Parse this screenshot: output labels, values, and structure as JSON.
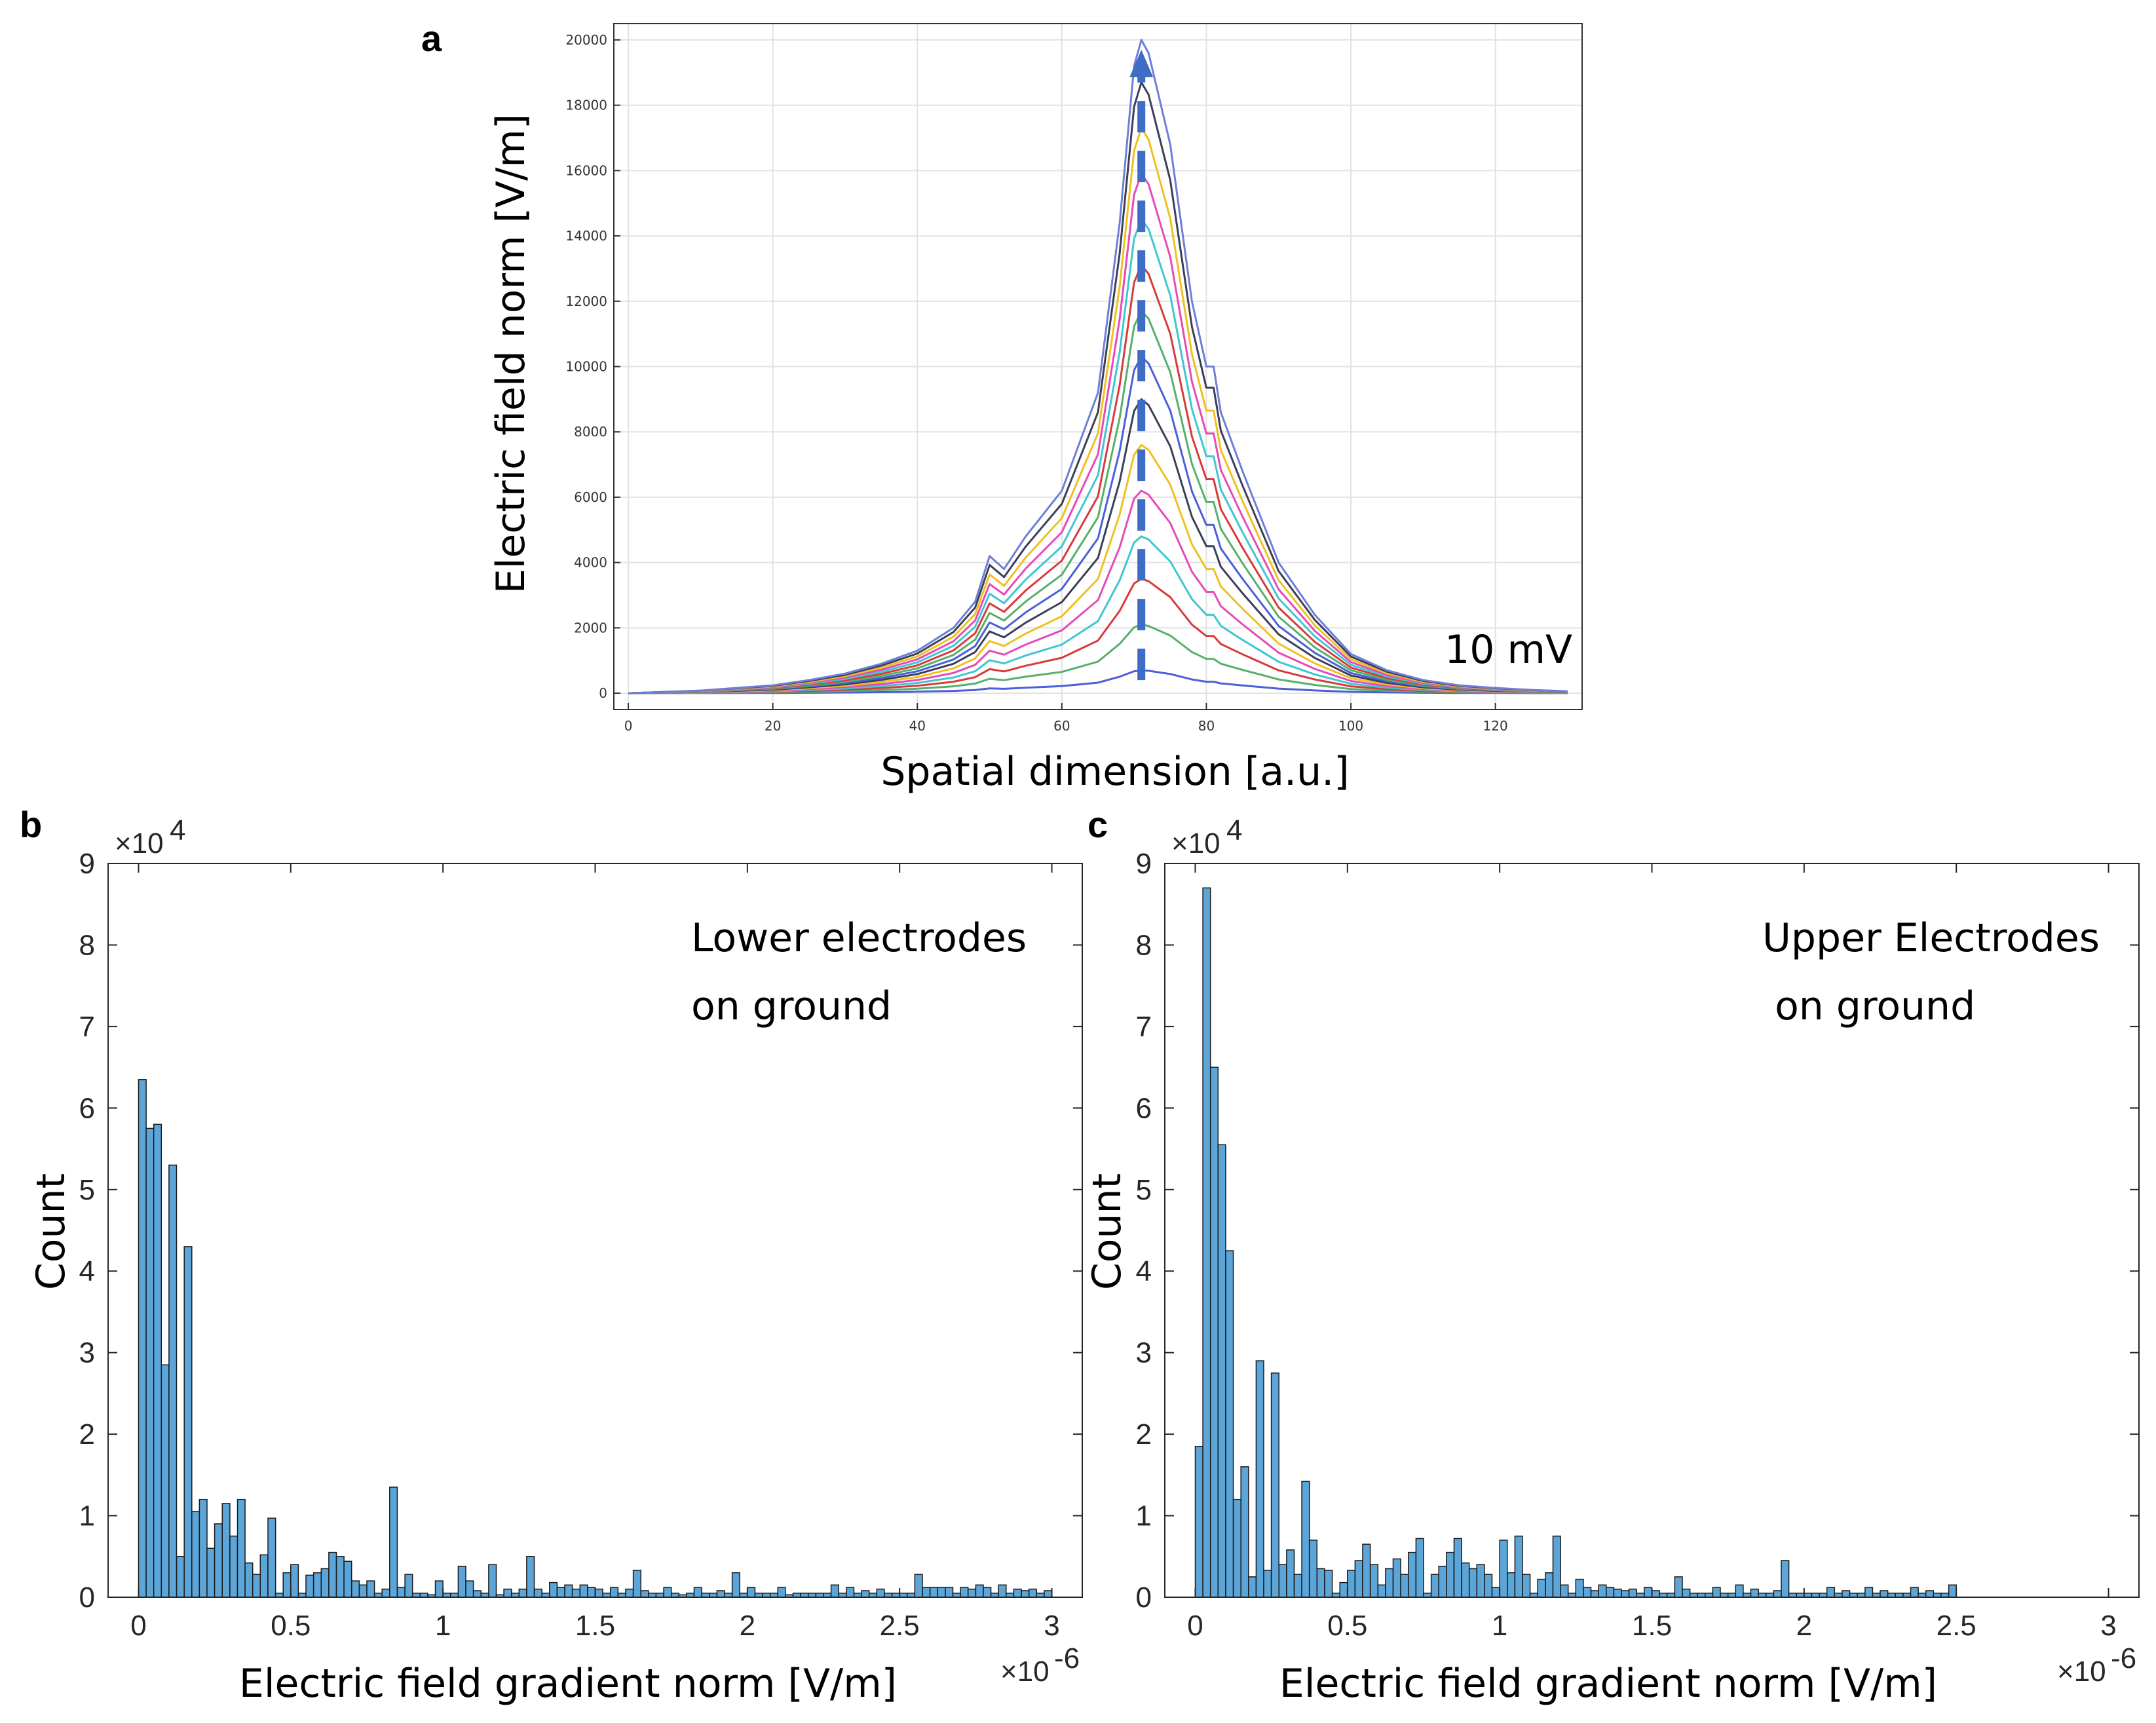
{
  "chart_data": [
    {
      "panel": "a",
      "type": "line",
      "xlabel": "Spatial dimension [a.u.]",
      "ylabel": "Electric field norm [V/m]",
      "xlim": [
        -2,
        132
      ],
      "ylim": [
        -500,
        20500
      ],
      "xticks": [
        "0",
        "20",
        "40",
        "60",
        "80",
        "100",
        "120"
      ],
      "yticks": [
        "0",
        "2000",
        "4000",
        "6000",
        "8000",
        "10000",
        "12000",
        "14000",
        "16000",
        "18000",
        "20000"
      ],
      "grid": true,
      "annotation": "10 mV",
      "profile_x": [
        0,
        10,
        20,
        25,
        30,
        35,
        40,
        45,
        48,
        50,
        52,
        55,
        60,
        65,
        68,
        70,
        71,
        72,
        75,
        78,
        80,
        81,
        82,
        85,
        90,
        95,
        100,
        105,
        110,
        115,
        120,
        125,
        130
      ],
      "profile_norm": [
        0.0,
        0.004,
        0.012,
        0.02,
        0.03,
        0.045,
        0.065,
        0.1,
        0.14,
        0.21,
        0.19,
        0.24,
        0.31,
        0.46,
        0.72,
        0.96,
        1.0,
        0.98,
        0.84,
        0.6,
        0.5,
        0.5,
        0.43,
        0.34,
        0.2,
        0.12,
        0.06,
        0.035,
        0.02,
        0.012,
        0.008,
        0.005,
        0.003
      ],
      "series": [
        {
          "color": "#4a5fd8",
          "peak": 700
        },
        {
          "color": "#55b06a",
          "peak": 2100
        },
        {
          "color": "#d83a3a",
          "peak": 3500
        },
        {
          "color": "#3fc6d3",
          "peak": 4800
        },
        {
          "color": "#e64ab8",
          "peak": 6200
        },
        {
          "color": "#f0c020",
          "peak": 7600
        },
        {
          "color": "#3b3f58",
          "peak": 9000
        },
        {
          "color": "#4a5fd8",
          "peak": 10300
        },
        {
          "color": "#55b06a",
          "peak": 11700
        },
        {
          "color": "#d83a3a",
          "peak": 13100
        },
        {
          "color": "#3fc6d3",
          "peak": 14500
        },
        {
          "color": "#e64ab8",
          "peak": 15900
        },
        {
          "color": "#f0c020",
          "peak": 17300
        },
        {
          "color": "#3b3f58",
          "peak": 18700
        },
        {
          "color": "#6d7fd8",
          "peak": 20000
        }
      ],
      "arrow": {
        "x": 71,
        "y_from": 400,
        "y_to": 19700,
        "color": "#3d6dc4"
      }
    },
    {
      "panel": "b",
      "type": "bar",
      "histogram": true,
      "annotation_lines": [
        "Lower electrodes",
        "on ground"
      ],
      "xlabel": "Electric field gradient norm [V/m]",
      "ylabel": "Count",
      "x_multiplier": "×10",
      "x_multiplier_exp": "-6",
      "y_multiplier": "×10",
      "y_multiplier_exp": "4",
      "xlim": [
        -0.1,
        3.1
      ],
      "ylim": [
        0,
        9
      ],
      "xticks": [
        "0",
        "0.5",
        "1",
        "1.5",
        "2",
        "2.5",
        "3"
      ],
      "yticks": [
        "0",
        "1",
        "2",
        "3",
        "4",
        "5",
        "6",
        "7",
        "8",
        "9"
      ],
      "bin_start": 0.0,
      "bin_width": 0.025,
      "bar_color": "#5ba5d8",
      "values": [
        6.35,
        5.75,
        5.8,
        2.85,
        5.3,
        0.5,
        4.3,
        1.05,
        1.2,
        0.6,
        0.9,
        1.15,
        0.75,
        1.2,
        0.42,
        0.28,
        0.52,
        0.97,
        0.05,
        0.3,
        0.4,
        0.05,
        0.27,
        0.3,
        0.35,
        0.55,
        0.5,
        0.44,
        0.2,
        0.15,
        0.2,
        0.05,
        0.1,
        1.35,
        0.12,
        0.28,
        0.05,
        0.05,
        0.03,
        0.2,
        0.05,
        0.05,
        0.38,
        0.2,
        0.08,
        0.05,
        0.4,
        0.03,
        0.1,
        0.05,
        0.1,
        0.5,
        0.1,
        0.05,
        0.18,
        0.12,
        0.15,
        0.1,
        0.15,
        0.12,
        0.1,
        0.05,
        0.12,
        0.05,
        0.1,
        0.33,
        0.08,
        0.05,
        0.05,
        0.12,
        0.05,
        0.03,
        0.05,
        0.12,
        0.05,
        0.05,
        0.08,
        0.05,
        0.3,
        0.05,
        0.12,
        0.05,
        0.05,
        0.05,
        0.12,
        0.03,
        0.05,
        0.05,
        0.05,
        0.05,
        0.05,
        0.15,
        0.05,
        0.12,
        0.05,
        0.08,
        0.05,
        0.1,
        0.05,
        0.05,
        0.05,
        0.05,
        0.28,
        0.12,
        0.12,
        0.12,
        0.12,
        0.05,
        0.12,
        0.1,
        0.15,
        0.12,
        0.05,
        0.15,
        0.05,
        0.1,
        0.08,
        0.1,
        0.05,
        0.08
      ]
    },
    {
      "panel": "c",
      "type": "bar",
      "histogram": true,
      "annotation_lines": [
        "Upper Electrodes",
        " on ground"
      ],
      "xlabel": "Electric field gradient norm [V/m]",
      "ylabel": "Count",
      "x_multiplier": "×10",
      "x_multiplier_exp": "-6",
      "y_multiplier": "×10",
      "y_multiplier_exp": "4",
      "xlim": [
        -0.1,
        3.1
      ],
      "ylim": [
        0,
        9
      ],
      "xticks": [
        "0",
        "0.5",
        "1",
        "1.5",
        "2",
        "2.5",
        "3"
      ],
      "yticks": [
        "0",
        "1",
        "2",
        "3",
        "4",
        "5",
        "6",
        "7",
        "8",
        "9"
      ],
      "bin_start": 0.0,
      "bin_width": 0.025,
      "bar_color": "#5ba5d8",
      "values": [
        1.85,
        8.7,
        6.5,
        5.55,
        4.25,
        1.2,
        1.6,
        0.25,
        2.9,
        0.33,
        2.75,
        0.4,
        0.58,
        0.28,
        1.42,
        0.7,
        0.35,
        0.33,
        0.05,
        0.18,
        0.33,
        0.45,
        0.65,
        0.4,
        0.15,
        0.35,
        0.47,
        0.28,
        0.55,
        0.72,
        0.05,
        0.28,
        0.38,
        0.55,
        0.72,
        0.42,
        0.35,
        0.4,
        0.28,
        0.12,
        0.7,
        0.3,
        0.75,
        0.28,
        0.05,
        0.22,
        0.3,
        0.75,
        0.15,
        0.05,
        0.22,
        0.12,
        0.08,
        0.15,
        0.12,
        0.1,
        0.08,
        0.1,
        0.05,
        0.12,
        0.08,
        0.05,
        0.05,
        0.25,
        0.1,
        0.05,
        0.05,
        0.05,
        0.12,
        0.05,
        0.05,
        0.15,
        0.05,
        0.1,
        0.05,
        0.05,
        0.08,
        0.45,
        0.05,
        0.05,
        0.05,
        0.05,
        0.05,
        0.12,
        0.05,
        0.08,
        0.05,
        0.05,
        0.12,
        0.05,
        0.08,
        0.05,
        0.05,
        0.05,
        0.12,
        0.05,
        0.08,
        0.05,
        0.05,
        0.15
      ]
    }
  ]
}
